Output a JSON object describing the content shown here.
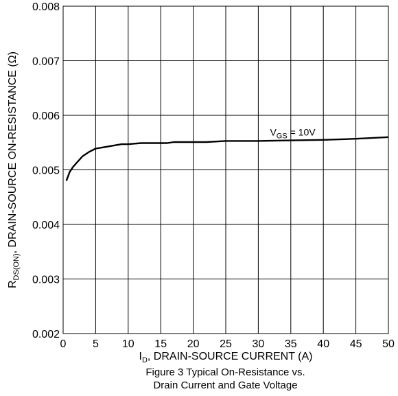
{
  "chart_data": {
    "type": "line",
    "ylabel": {
      "main": "R",
      "sub": "DS(ON)",
      "rest": ", DRAIN-SOURCE ON-RESISTANCE  (Ω)"
    },
    "xlabel": {
      "main": "I",
      "sub": "D",
      "rest": ", DRAIN-SOURCE CURRENT  (A)"
    },
    "xlim": [
      0,
      50
    ],
    "ylim": [
      0.002,
      0.008
    ],
    "x_ticks": [
      "0",
      "5",
      "10",
      "15",
      "20",
      "25",
      "30",
      "35",
      "40",
      "45",
      "50"
    ],
    "y_ticks": [
      "0.002",
      "0.003",
      "0.004",
      "0.005",
      "0.006",
      "0.007",
      "0.008"
    ],
    "grid": true,
    "series": [
      {
        "label_main": "V",
        "label_sub": "GS",
        "label_rest": " = 10V",
        "color": "#000000",
        "x": [
          0.5,
          1,
          1.5,
          2,
          3,
          4,
          5,
          6,
          7,
          8,
          9,
          10,
          12,
          14,
          16,
          17,
          20,
          22,
          25,
          30,
          35,
          40,
          45,
          50
        ],
        "y": [
          0.0048,
          0.00496,
          0.00505,
          0.00512,
          0.00525,
          0.00533,
          0.00539,
          0.00541,
          0.00543,
          0.00545,
          0.00547,
          0.00547,
          0.00549,
          0.00549,
          0.00549,
          0.00551,
          0.00551,
          0.00551,
          0.00553,
          0.00553,
          0.00554,
          0.00555,
          0.00557,
          0.0056
        ]
      }
    ]
  },
  "caption": {
    "line1": "Figure 3 Typical On-Resistance vs.",
    "line2": "Drain Current and Gate Voltage"
  }
}
